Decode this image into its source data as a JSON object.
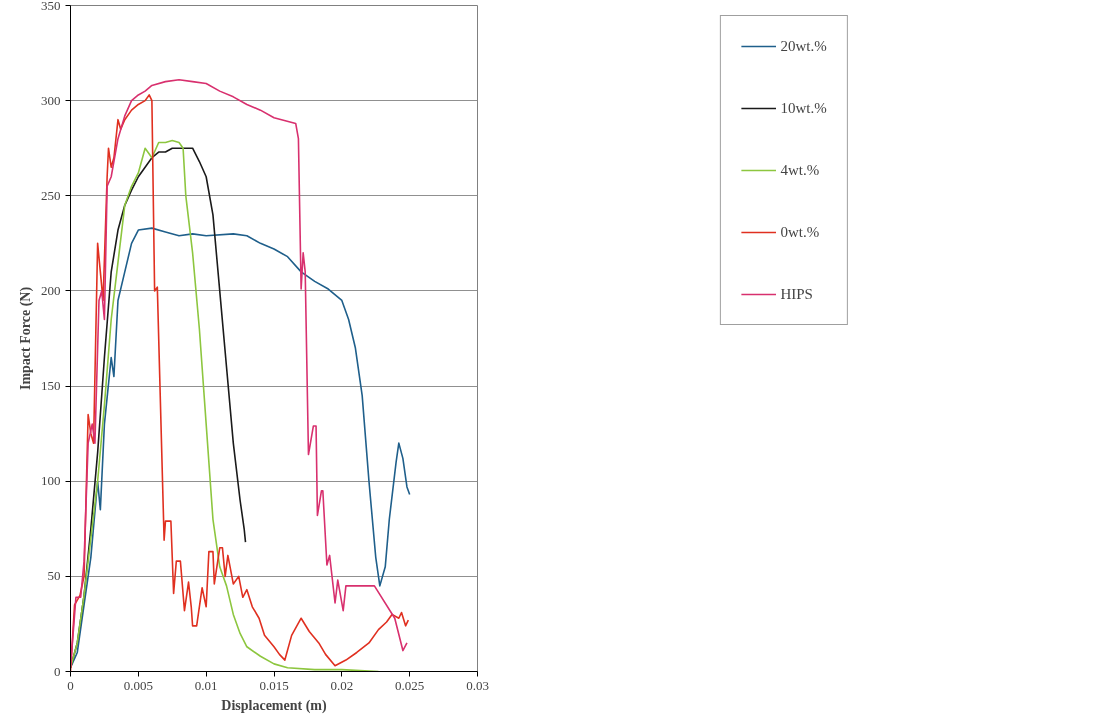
{
  "chart_data": {
    "type": "line",
    "xlabel": "Displacement (m)",
    "ylabel": "Impact Force (N)",
    "xlim": [
      0,
      0.03
    ],
    "xticks": [
      0,
      0.005,
      0.01,
      0.015,
      0.02,
      0.025,
      0.03
    ],
    "ylim": [
      0,
      350
    ],
    "yticks": [
      0,
      50,
      100,
      150,
      200,
      250,
      300,
      350
    ],
    "grid": "y",
    "legend": "top right",
    "marker": "none",
    "line_style": "solid",
    "series": [
      {
        "name": "20wt.%",
        "color": "#1f5f8b",
        "x": [
          0,
          0.0005,
          0.001,
          0.0015,
          0.002,
          0.0022,
          0.0025,
          0.003,
          0.0032,
          0.0035,
          0.004,
          0.0045,
          0.005,
          0.006,
          0.007,
          0.008,
          0.009,
          0.01,
          0.012,
          0.013,
          0.014,
          0.015,
          0.016,
          0.017,
          0.018,
          0.019,
          0.02,
          0.0205,
          0.021,
          0.0215,
          0.022,
          0.0225,
          0.0228,
          0.0232,
          0.0235,
          0.024,
          0.0242,
          0.0245,
          0.0248,
          0.025
        ],
        "values": [
          2,
          10,
          35,
          60,
          100,
          85,
          130,
          165,
          155,
          195,
          210,
          225,
          232,
          233,
          231,
          229,
          230,
          229,
          230,
          229,
          225,
          222,
          218,
          210,
          205,
          201,
          195,
          185,
          170,
          145,
          100,
          60,
          45,
          55,
          80,
          110,
          120,
          112,
          97,
          93
        ]
      },
      {
        "name": "10wt.%",
        "color": "#1a1a1a",
        "x": [
          0,
          0.0005,
          0.001,
          0.0015,
          0.002,
          0.0025,
          0.003,
          0.0035,
          0.004,
          0.0045,
          0.005,
          0.0055,
          0.006,
          0.0065,
          0.007,
          0.0075,
          0.009,
          0.0095,
          0.01,
          0.0105,
          0.011,
          0.0115,
          0.012,
          0.0125,
          0.0128,
          0.0129
        ],
        "values": [
          2,
          15,
          40,
          75,
          115,
          165,
          210,
          232,
          245,
          253,
          260,
          265,
          270,
          273,
          273,
          275,
          275,
          268,
          260,
          240,
          200,
          160,
          120,
          90,
          75,
          68
        ]
      },
      {
        "name": "4wt.%",
        "color": "#8dc63f",
        "x": [
          0,
          0.0005,
          0.001,
          0.0015,
          0.002,
          0.0025,
          0.003,
          0.0035,
          0.004,
          0.0045,
          0.005,
          0.0055,
          0.006,
          0.0065,
          0.007,
          0.0075,
          0.008,
          0.0083,
          0.0085,
          0.009,
          0.0095,
          0.01,
          0.0105,
          0.011,
          0.0115,
          0.012,
          0.0125,
          0.013,
          0.014,
          0.015,
          0.016,
          0.018,
          0.02,
          0.0227
        ],
        "values": [
          2,
          15,
          40,
          70,
          100,
          140,
          185,
          215,
          245,
          255,
          262,
          275,
          270,
          278,
          278,
          279,
          278,
          275,
          250,
          220,
          180,
          130,
          80,
          55,
          45,
          30,
          20,
          13,
          8,
          4,
          2,
          1,
          1,
          0
        ]
      },
      {
        "name": "0wt.%",
        "color": "#e03020",
        "x": [
          0,
          0.0003,
          0.0007,
          0.001,
          0.0013,
          0.0015,
          0.0017,
          0.002,
          0.0022,
          0.0024,
          0.0027,
          0.0028,
          0.003,
          0.0032,
          0.0035,
          0.0037,
          0.004,
          0.0045,
          0.005,
          0.0055,
          0.0058,
          0.006,
          0.0062,
          0.0064,
          0.0069,
          0.007,
          0.0074,
          0.0076,
          0.0078,
          0.0081,
          0.0084,
          0.0087,
          0.0089,
          0.009,
          0.0093,
          0.0097,
          0.01,
          0.0102,
          0.0105,
          0.0106,
          0.011,
          0.0112,
          0.0114,
          0.0116,
          0.012,
          0.0124,
          0.0127,
          0.013,
          0.0134,
          0.0139,
          0.0143,
          0.015,
          0.0154,
          0.0158,
          0.0163,
          0.017,
          0.0176,
          0.0183,
          0.0188,
          0.0195,
          0.0203,
          0.0211,
          0.022,
          0.0227,
          0.0233,
          0.0237,
          0.0242,
          0.0244,
          0.0247,
          0.0249
        ],
        "values": [
          0,
          35,
          40,
          50,
          135,
          125,
          120,
          225,
          210,
          195,
          260,
          275,
          265,
          270,
          290,
          285,
          290,
          295,
          298,
          300,
          303,
          300,
          200,
          202,
          69,
          79,
          79,
          41,
          58,
          58,
          32,
          47,
          34,
          24,
          24,
          44,
          34,
          63,
          63,
          46,
          65,
          65,
          50,
          61,
          46,
          50,
          39,
          43,
          34,
          28,
          19,
          13,
          9,
          6,
          19,
          28,
          21,
          15,
          9,
          3,
          6,
          10,
          15,
          22,
          26,
          30,
          28,
          31,
          24,
          27
        ]
      },
      {
        "name": "HIPS",
        "color": "#d8306e",
        "x": [
          0,
          0.0004,
          0.00075,
          0.001,
          0.0013,
          0.0016,
          0.0018,
          0.0021,
          0.0023,
          0.0025,
          0.0027,
          0.003,
          0.0035,
          0.004,
          0.0045,
          0.005,
          0.0055,
          0.006,
          0.007,
          0.008,
          0.009,
          0.01,
          0.011,
          0.012,
          0.013,
          0.014,
          0.015,
          0.0166,
          0.0168,
          0.017,
          0.01715,
          0.0173,
          0.01754,
          0.0179,
          0.0181,
          0.0182,
          0.0185,
          0.0186,
          0.0189,
          0.0191,
          0.0195,
          0.0197,
          0.0201,
          0.0203,
          0.0224,
          0.0239,
          0.0245,
          0.0248
        ],
        "values": [
          2,
          39,
          39,
          58,
          120,
          130,
          120,
          195,
          200,
          185,
          255,
          260,
          280,
          292,
          300,
          303,
          305,
          308,
          310,
          311,
          310,
          309,
          305,
          302,
          298,
          295,
          291,
          288,
          280,
          201,
          220,
          210,
          114,
          129,
          129,
          82,
          95,
          95,
          56,
          61,
          36,
          48,
          32,
          45,
          45,
          28,
          11,
          15
        ]
      }
    ]
  }
}
